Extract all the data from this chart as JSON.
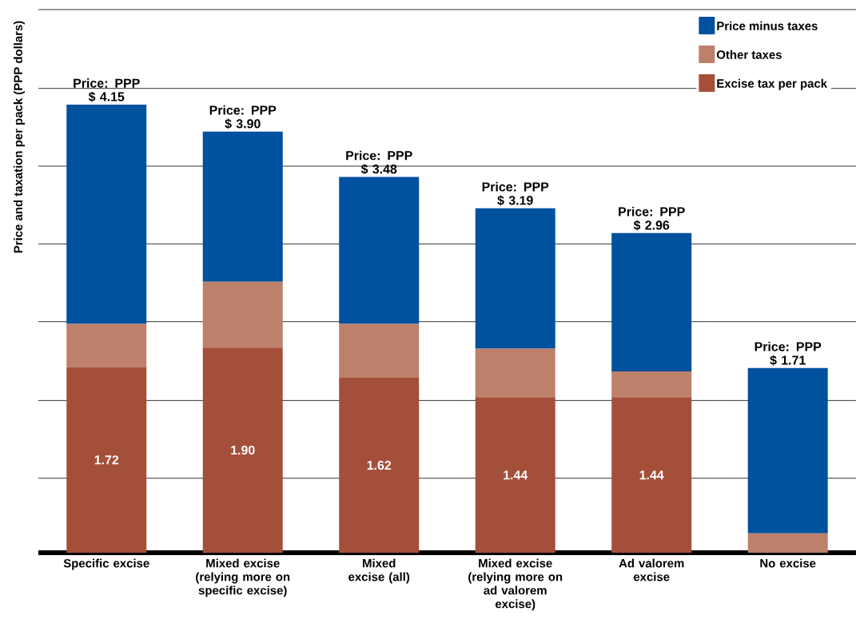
{
  "chart_data": {
    "type": "bar",
    "stacked": true,
    "ylabel": "Price and taxation per pack (PPP dollars)",
    "categories": [
      "Specific excise",
      "Mixed excise (relying more on specific excise)",
      "Mixed excise (all)",
      "Mixed excise (relying more on ad valorem excise)",
      "Ad valorem excise",
      "No excise"
    ],
    "series": [
      {
        "name": "Excise tax per pack",
        "color": "#a44f3a",
        "values": [
          1.72,
          1.9,
          1.62,
          1.44,
          1.44,
          0
        ],
        "value_labels": [
          "1.72",
          "1.90",
          "1.62",
          "1.44",
          "1.44",
          null
        ]
      },
      {
        "name": "Other taxes",
        "color": "#bd806b",
        "values": [
          0.4,
          0.61,
          0.5,
          0.45,
          0.24,
          0.18
        ]
      },
      {
        "name": "Price minus taxes",
        "color": "#00519e",
        "values": [
          2.03,
          1.39,
          1.36,
          1.3,
          1.28,
          1.53
        ]
      }
    ],
    "totals": [
      "Price: PPP $ 4.15",
      "Price: PPP $ 3.90",
      "Price: PPP $ 3.48",
      "Price: PPP $ 3.19",
      "Price: PPP $ 2.96",
      "Price: PPP $ 1.71"
    ],
    "ylim": [
      0,
      5.03
    ],
    "yticks": [
      {
        "value": 0.69,
        "label": null
      },
      {
        "value": 1.41,
        "label": null
      },
      {
        "value": 2.14,
        "label": null
      },
      {
        "value": 2.86,
        "label": null
      },
      {
        "value": 3.58,
        "label": null
      },
      {
        "value": 4.3,
        "label": null
      },
      {
        "value": 5.03,
        "label": null
      }
    ],
    "grid": "y",
    "legend": "top right",
    "tick_labels": "x"
  }
}
